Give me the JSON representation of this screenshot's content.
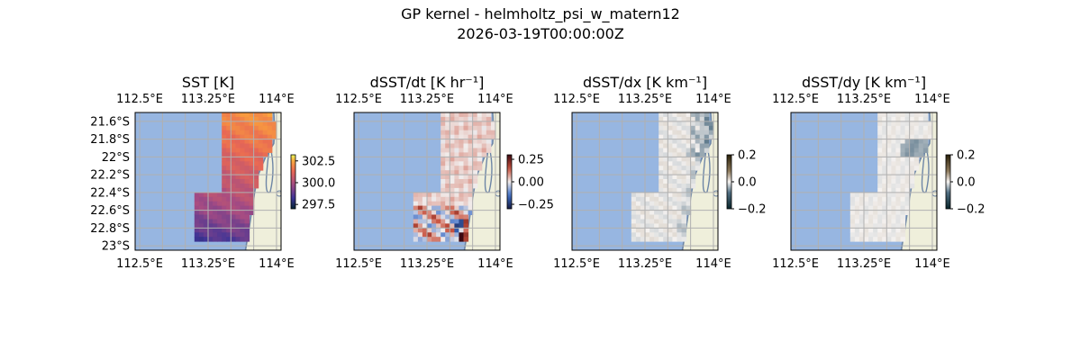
{
  "figure": {
    "title_line1": "GP kernel - helmholtz_psi_w_matern12",
    "title_line2": "2026-03-19T00:00:00Z"
  },
  "map_extent": {
    "lon": [
      112.45,
      114.05
    ],
    "lat": [
      -23.05,
      -21.5
    ]
  },
  "colors": {
    "ocean": "#97b6e1",
    "land": "#efefdb",
    "grid": "#b0b0b0",
    "coast": "#6e86a6"
  },
  "chart_data": [
    {
      "type": "heatmap",
      "title": "SST [K]",
      "x_tick_labels": [
        "112.5°E",
        "113.25°E",
        "114°E"
      ],
      "x_ticks": [
        112.5,
        113.25,
        114.0
      ],
      "y_tick_labels": [
        "21.6°S",
        "21.8°S",
        "22°S",
        "22.2°S",
        "22.4°S",
        "22.6°S",
        "22.8°S",
        "23°S"
      ],
      "y_ticks": [
        -21.6,
        -21.8,
        -22.0,
        -22.2,
        -22.4,
        -22.6,
        -22.8,
        -23.0
      ],
      "colormap": "thermal",
      "colorbar": {
        "range": [
          297.0,
          303.2
        ],
        "ticks": [
          302.5,
          300.0,
          297.5
        ],
        "tick_labels": [
          "302.5",
          "300.0",
          "297.5"
        ]
      },
      "field_summary": {
        "north_east_value": 302.7,
        "south_west_value": 298.5
      }
    },
    {
      "type": "heatmap",
      "title": "dSST/dt [K hr⁻¹]",
      "x_tick_labels": [
        "112.5°E",
        "113.25°E",
        "114°E"
      ],
      "x_ticks": [
        112.5,
        113.25,
        114.0
      ],
      "colormap": "balance",
      "colorbar": {
        "range": [
          -0.3,
          0.3
        ],
        "ticks": [
          0.25,
          0.0,
          -0.25
        ],
        "tick_labels": [
          "0.25",
          "0.00",
          "−0.25"
        ]
      }
    },
    {
      "type": "heatmap",
      "title": "dSST/dx [K km⁻¹]",
      "x_tick_labels": [
        "112.5°E",
        "113.25°E",
        "114°E"
      ],
      "x_ticks": [
        112.5,
        113.25,
        114.0
      ],
      "colormap": "diff",
      "colorbar": {
        "range": [
          -0.2,
          0.2
        ],
        "ticks": [
          0.2,
          0.0,
          -0.2
        ],
        "tick_labels": [
          "0.2",
          "0.0",
          "−0.2"
        ]
      }
    },
    {
      "type": "heatmap",
      "title": "dSST/dy [K km⁻¹]",
      "x_tick_labels": [
        "112.5°E",
        "113.25°E",
        "114°E"
      ],
      "x_ticks": [
        112.5,
        113.25,
        114.0
      ],
      "colormap": "diff",
      "colorbar": {
        "range": [
          -0.2,
          0.2
        ],
        "ticks": [
          0.2,
          0.0,
          -0.2
        ],
        "tick_labels": [
          "0.2",
          "0.0",
          "−0.2"
        ]
      }
    }
  ]
}
